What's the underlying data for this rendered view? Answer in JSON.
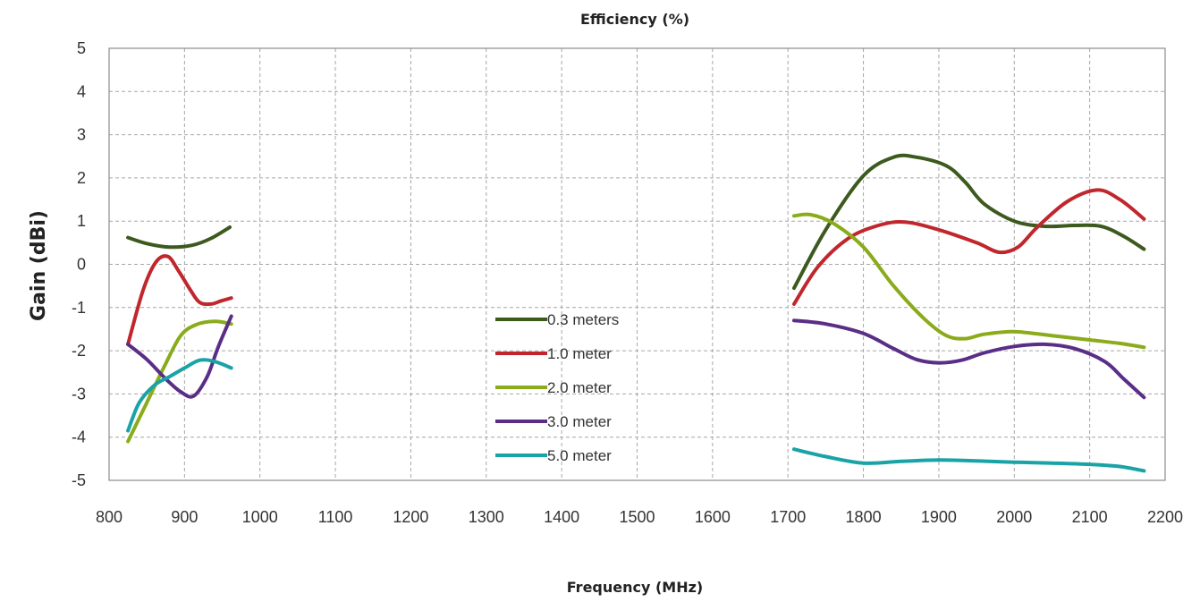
{
  "chart_data": {
    "type": "line",
    "title": "Efficiency (%)",
    "xlabel": "Frequency (MHz)",
    "ylabel": "Gain (dBi)",
    "xlim": [
      800,
      2200
    ],
    "ylim": [
      -5,
      5
    ],
    "x_ticks": [
      800,
      900,
      1000,
      1100,
      1200,
      1300,
      1400,
      1500,
      1600,
      1700,
      1800,
      1900,
      2000,
      2100,
      2200
    ],
    "y_ticks": [
      5,
      4,
      3,
      2,
      1,
      0,
      -1,
      -2,
      -3,
      -4,
      -5
    ],
    "grid": true,
    "legend_position": "center",
    "series": [
      {
        "name": "0.3 meters",
        "color": "#3d5a1e",
        "segments": [
          [
            [
              825,
              0.62
            ],
            [
              850,
              0.48
            ],
            [
              880,
              0.4
            ],
            [
              910,
              0.44
            ],
            [
              935,
              0.6
            ],
            [
              960,
              0.86
            ]
          ],
          [
            [
              1708,
              -0.55
            ],
            [
              1750,
              0.8
            ],
            [
              1800,
              2.05
            ],
            [
              1840,
              2.48
            ],
            [
              1870,
              2.48
            ],
            [
              1910,
              2.28
            ],
            [
              1935,
              1.9
            ],
            [
              1960,
              1.4
            ],
            [
              2000,
              1.0
            ],
            [
              2040,
              0.88
            ],
            [
              2080,
              0.9
            ],
            [
              2115,
              0.88
            ],
            [
              2145,
              0.65
            ],
            [
              2172,
              0.35
            ]
          ]
        ]
      },
      {
        "name": "1.0 meter",
        "color": "#c0272d",
        "segments": [
          [
            [
              825,
              -1.85
            ],
            [
              845,
              -0.6
            ],
            [
              862,
              0.05
            ],
            [
              878,
              0.18
            ],
            [
              892,
              -0.15
            ],
            [
              908,
              -0.6
            ],
            [
              920,
              -0.88
            ],
            [
              935,
              -0.92
            ],
            [
              948,
              -0.85
            ],
            [
              962,
              -0.78
            ]
          ],
          [
            [
              1708,
              -0.92
            ],
            [
              1740,
              -0.05
            ],
            [
              1780,
              0.6
            ],
            [
              1820,
              0.9
            ],
            [
              1855,
              0.98
            ],
            [
              1900,
              0.8
            ],
            [
              1950,
              0.5
            ],
            [
              1980,
              0.28
            ],
            [
              2005,
              0.4
            ],
            [
              2030,
              0.85
            ],
            [
              2070,
              1.45
            ],
            [
              2110,
              1.72
            ],
            [
              2140,
              1.5
            ],
            [
              2172,
              1.05
            ]
          ]
        ]
      },
      {
        "name": "2.0 meter",
        "color": "#8aab1a",
        "segments": [
          [
            [
              825,
              -4.1
            ],
            [
              850,
              -3.2
            ],
            [
              875,
              -2.3
            ],
            [
              895,
              -1.65
            ],
            [
              915,
              -1.4
            ],
            [
              940,
              -1.32
            ],
            [
              962,
              -1.38
            ]
          ],
          [
            [
              1708,
              1.12
            ],
            [
              1730,
              1.15
            ],
            [
              1760,
              0.95
            ],
            [
              1800,
              0.4
            ],
            [
              1840,
              -0.5
            ],
            [
              1880,
              -1.25
            ],
            [
              1910,
              -1.65
            ],
            [
              1935,
              -1.72
            ],
            [
              1960,
              -1.62
            ],
            [
              2000,
              -1.56
            ],
            [
              2050,
              -1.65
            ],
            [
              2100,
              -1.75
            ],
            [
              2140,
              -1.83
            ],
            [
              2172,
              -1.92
            ]
          ]
        ]
      },
      {
        "name": "3.0 meter",
        "color": "#5a2e86",
        "segments": [
          [
            [
              825,
              -1.85
            ],
            [
              850,
              -2.2
            ],
            [
              875,
              -2.65
            ],
            [
              895,
              -2.95
            ],
            [
              912,
              -3.05
            ],
            [
              930,
              -2.6
            ],
            [
              945,
              -1.9
            ],
            [
              962,
              -1.2
            ]
          ],
          [
            [
              1708,
              -1.3
            ],
            [
              1750,
              -1.38
            ],
            [
              1800,
              -1.6
            ],
            [
              1840,
              -1.95
            ],
            [
              1870,
              -2.2
            ],
            [
              1900,
              -2.28
            ],
            [
              1930,
              -2.22
            ],
            [
              1960,
              -2.05
            ],
            [
              2000,
              -1.9
            ],
            [
              2040,
              -1.85
            ],
            [
              2080,
              -1.95
            ],
            [
              2120,
              -2.25
            ],
            [
              2145,
              -2.65
            ],
            [
              2172,
              -3.08
            ]
          ]
        ]
      },
      {
        "name": "5.0 meter",
        "color": "#1aa3a6",
        "segments": [
          [
            [
              825,
              -3.85
            ],
            [
              840,
              -3.2
            ],
            [
              860,
              -2.8
            ],
            [
              880,
              -2.6
            ],
            [
              900,
              -2.4
            ],
            [
              920,
              -2.22
            ],
            [
              940,
              -2.25
            ],
            [
              962,
              -2.4
            ]
          ],
          [
            [
              1708,
              -4.28
            ],
            [
              1750,
              -4.45
            ],
            [
              1800,
              -4.6
            ],
            [
              1850,
              -4.56
            ],
            [
              1900,
              -4.53
            ],
            [
              1950,
              -4.55
            ],
            [
              2000,
              -4.58
            ],
            [
              2050,
              -4.6
            ],
            [
              2100,
              -4.63
            ],
            [
              2140,
              -4.68
            ],
            [
              2172,
              -4.78
            ]
          ]
        ]
      }
    ]
  }
}
